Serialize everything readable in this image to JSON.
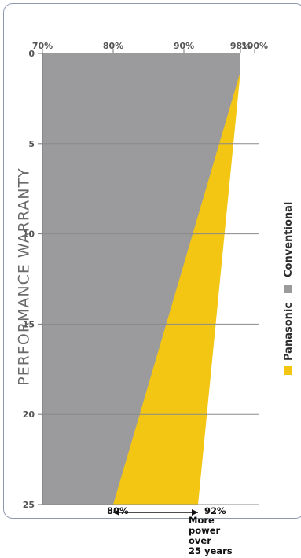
{
  "chart_data": {
    "type": "area",
    "title": "PERFORMANCE WARRANTY",
    "x": [
      0,
      1,
      25
    ],
    "x_ticks": [
      "0",
      "5",
      "10",
      "15",
      "20",
      "25"
    ],
    "xlim": [
      0,
      25
    ],
    "y_ticks": [
      "100%",
      "98%",
      "90%",
      "80%",
      "70%"
    ],
    "ylim": [
      70,
      100
    ],
    "series": [
      {
        "name": "Panasonic",
        "color": "#f4c614",
        "values": [
          98,
          98,
          92
        ]
      },
      {
        "name": "Conventional",
        "color": "#9b9b9d",
        "values": [
          98,
          98,
          80
        ]
      }
    ],
    "annotations": {
      "top_value": "92%",
      "bottom_value": "80%",
      "note_lines": [
        "More",
        "power",
        "over",
        "25 years"
      ]
    },
    "grid": true,
    "legend_position": "bottom"
  }
}
